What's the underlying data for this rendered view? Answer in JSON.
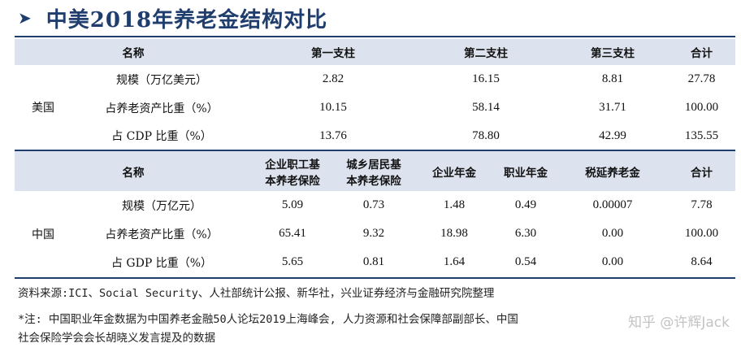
{
  "title": "中美2018年养老金结构对比",
  "us": {
    "country": "美国",
    "header": [
      "名称",
      "第一支柱",
      "第二支柱",
      "第三支柱",
      "合计"
    ],
    "rows": [
      {
        "label": "规模（万亿美元）",
        "values": [
          "2.82",
          "16.15",
          "8.81",
          "27.78"
        ]
      },
      {
        "label": "占养老资产比重（%）",
        "values": [
          "10.15",
          "58.14",
          "31.71",
          "100.00"
        ]
      },
      {
        "label": "占 CDP 比重（%）",
        "values": [
          "13.76",
          "78.80",
          "42.99",
          "135.55"
        ]
      }
    ]
  },
  "cn": {
    "country": "中国",
    "header": {
      "name": "名称",
      "col1_line1": "企业职工基",
      "col1_line2": "本养老保险",
      "col2_line1": "城乡居民基",
      "col2_line2": "本养老保险",
      "col3": "企业年金",
      "col4": "职业年金",
      "col5": "税延养老金",
      "col6": "合计"
    },
    "rows": [
      {
        "label": "规模（万亿元）",
        "values": [
          "5.09",
          "0.73",
          "1.48",
          "0.49",
          "0.00007",
          "7.78"
        ]
      },
      {
        "label": "占养老资产比重（%）",
        "values": [
          "65.41",
          "9.32",
          "18.98",
          "6.30",
          "0.00",
          "100.00"
        ]
      },
      {
        "label": "占 GDP 比重（%）",
        "values": [
          "5.65",
          "0.81",
          "1.64",
          "0.54",
          "0.00",
          "8.64"
        ]
      }
    ]
  },
  "notes": {
    "source": "资料来源:ICI、Social Security、人社部统计公报、新华社，兴业证券经济与金融研究院整理",
    "footnote_line1": "*注: 中国职业年金数据为中国养老金融50人论坛2019上海峰会, 人力资源和社会保障部副部长、中国",
    "footnote_line2": "社会保险学会会长胡晓义发言提及的数据"
  },
  "watermark": "知乎 @许辉Jack"
}
